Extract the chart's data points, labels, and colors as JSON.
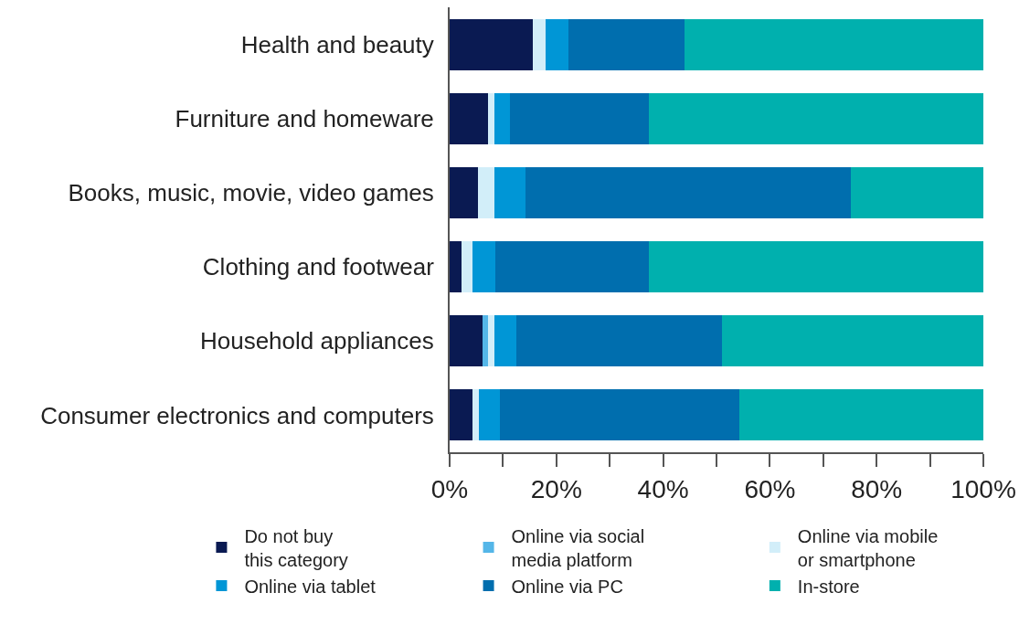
{
  "chart_data": {
    "type": "bar",
    "orientation": "horizontal",
    "stacked": true,
    "categories": [
      "Health and beauty",
      "Furniture and homeware",
      "Books, music, movie, video games",
      "Clothing and footwear",
      "Household appliances",
      "Consumer electronics and computers"
    ],
    "series": [
      {
        "name": "Do not buy\nthis category",
        "color": "#0a1a52",
        "values": [
          15.6,
          7.2,
          5.3,
          2.2,
          6.2,
          4.3
        ]
      },
      {
        "name": "Online via social\nmedia platform",
        "color": "#54b6e8",
        "values": [
          0,
          0,
          0,
          0,
          1.0,
          0
        ]
      },
      {
        "name": "Online via mobile\nor smartphone",
        "color": "#d2eef9",
        "values": [
          2.4,
          1.2,
          3.1,
          2.1,
          1.2,
          1.2
        ]
      },
      {
        "name": "Online via tablet",
        "color": "#0096d6",
        "values": [
          4.3,
          2.9,
          5.8,
          4.3,
          4.1,
          3.9
        ]
      },
      {
        "name": "Online via PC",
        "color": "#006eae",
        "values": [
          21.7,
          26.1,
          60.9,
          28.8,
          38.6,
          44.8
        ]
      },
      {
        "name": "In-store",
        "color": "#00b0ae",
        "values": [
          56.0,
          62.6,
          24.9,
          62.6,
          48.9,
          45.8
        ]
      }
    ],
    "xlim": [
      0,
      100
    ],
    "xticks": [
      {
        "value": 0,
        "label": "0%"
      },
      {
        "value": 10,
        "label": null
      },
      {
        "value": 20,
        "label": "20%"
      },
      {
        "value": 30,
        "label": null
      },
      {
        "value": 40,
        "label": "40%"
      },
      {
        "value": 50,
        "label": null
      },
      {
        "value": 60,
        "label": "60%"
      },
      {
        "value": 70,
        "label": null
      },
      {
        "value": 80,
        "label": "80%"
      },
      {
        "value": 90,
        "label": null
      },
      {
        "value": 100,
        "label": "100%"
      }
    ],
    "legend": "bottom"
  }
}
